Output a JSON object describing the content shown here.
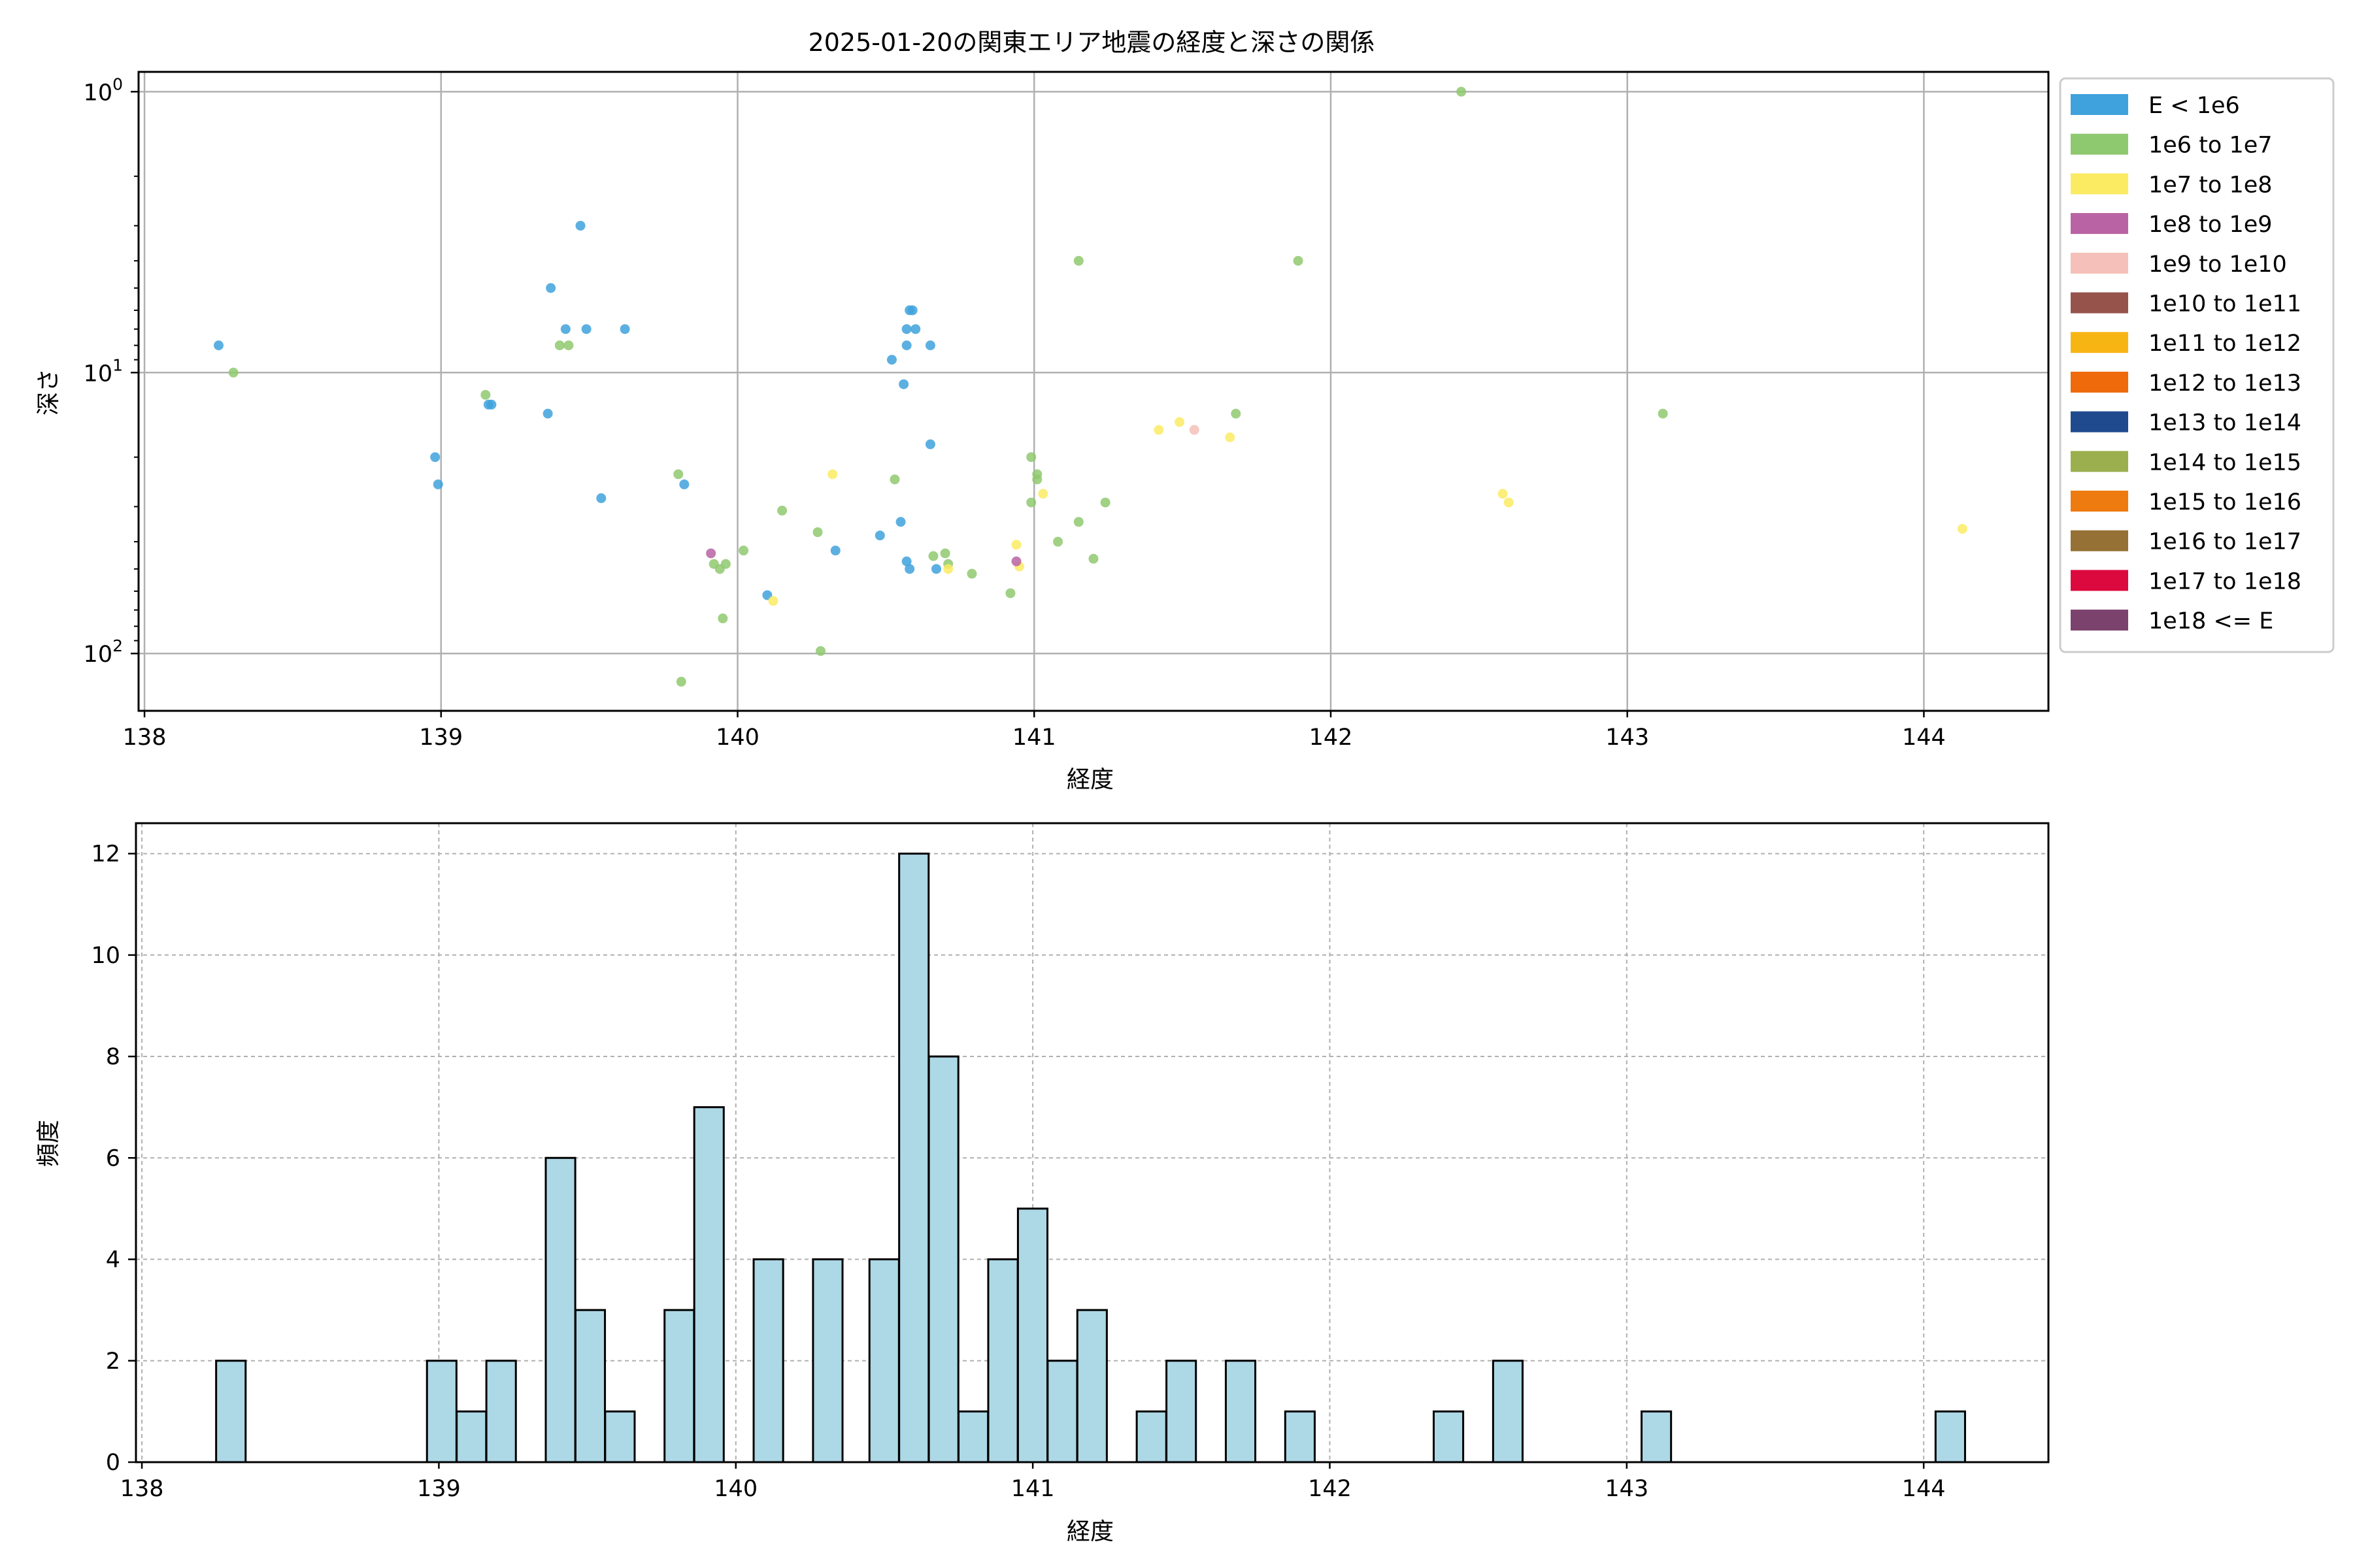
{
  "chart_data": [
    {
      "type": "scatter",
      "title": "2025-01-20の関東エリア地震の経度と深さの関係",
      "xlabel": "経度",
      "ylabel": "深さ",
      "xlim": [
        137.98,
        144.42
      ],
      "ylim": [
        160,
        0.85
      ],
      "yscale": "log",
      "yinverted": true,
      "grid": true,
      "xticks": [
        "138",
        "139",
        "140",
        "141",
        "142",
        "143",
        "144"
      ],
      "yticks": [
        {
          "value": 1,
          "base": "10",
          "exp": "0"
        },
        {
          "value": 10,
          "base": "10",
          "exp": "1"
        },
        {
          "value": 100,
          "base": "10",
          "exp": "2"
        }
      ],
      "legend": {
        "placement": "outside-right",
        "entries": [
          {
            "label": "E < 1e6",
            "color": "#3fa2dc"
          },
          {
            "label": "1e6 to 1e7",
            "color": "#8fc96f"
          },
          {
            "label": "1e7 to 1e8",
            "color": "#fbeb63"
          },
          {
            "label": "1e8 to 1e9",
            "color": "#b963a4"
          },
          {
            "label": "1e9 to 1e10",
            "color": "#f4c0b9"
          },
          {
            "label": "1e10 to 1e11",
            "color": "#96534c"
          },
          {
            "label": "1e11 to 1e12",
            "color": "#f7b514"
          },
          {
            "label": "1e12 to 1e13",
            "color": "#ee6a0a"
          },
          {
            "label": "1e13 to 1e14",
            "color": "#1f4a8e"
          },
          {
            "label": "1e14 to 1e15",
            "color": "#9caf4f"
          },
          {
            "label": "1e15 to 1e16",
            "color": "#ee7b10"
          },
          {
            "label": "1e16 to 1e17",
            "color": "#957135"
          },
          {
            "label": "1e17 to 1e18",
            "color": "#dc093f"
          },
          {
            "label": "1e18 <= E",
            "color": "#7a426c"
          }
        ]
      },
      "series": [
        {
          "category": 0,
          "points": [
            [
              138.25,
              8
            ],
            [
              138.98,
              20
            ],
            [
              138.99,
              25
            ],
            [
              139.16,
              13
            ],
            [
              139.17,
              13
            ],
            [
              139.36,
              14
            ],
            [
              139.37,
              5
            ],
            [
              139.42,
              7
            ],
            [
              139.47,
              3
            ],
            [
              139.49,
              7
            ],
            [
              139.54,
              28
            ],
            [
              139.62,
              7
            ],
            [
              139.82,
              25
            ],
            [
              140.1,
              62
            ],
            [
              140.33,
              43
            ],
            [
              140.48,
              38
            ],
            [
              140.52,
              9
            ],
            [
              140.55,
              34
            ],
            [
              140.56,
              11
            ],
            [
              140.57,
              8
            ],
            [
              140.57,
              7
            ],
            [
              140.58,
              6
            ],
            [
              140.59,
              6
            ],
            [
              140.6,
              7
            ],
            [
              140.57,
              47
            ],
            [
              140.58,
              50
            ],
            [
              140.65,
              18
            ],
            [
              140.65,
              8
            ],
            [
              140.67,
              50
            ]
          ]
        },
        {
          "category": 1,
          "points": [
            [
              138.3,
              10
            ],
            [
              139.15,
              12
            ],
            [
              139.4,
              8
            ],
            [
              139.43,
              8
            ],
            [
              139.8,
              23
            ],
            [
              139.92,
              48
            ],
            [
              139.94,
              50
            ],
            [
              139.96,
              48
            ],
            [
              139.95,
              75
            ],
            [
              140.02,
              43
            ],
            [
              140.15,
              31
            ],
            [
              140.27,
              37
            ],
            [
              140.28,
              98
            ],
            [
              139.81,
              126
            ],
            [
              140.53,
              24
            ],
            [
              140.66,
              45
            ],
            [
              140.7,
              44
            ],
            [
              140.71,
              48
            ],
            [
              140.79,
              52
            ],
            [
              140.92,
              61
            ],
            [
              140.99,
              20
            ],
            [
              141.01,
              23
            ],
            [
              141.01,
              24
            ],
            [
              140.99,
              29
            ],
            [
              141.08,
              40
            ],
            [
              141.15,
              34
            ],
            [
              141.2,
              46
            ],
            [
              141.24,
              29
            ],
            [
              141.15,
              4
            ],
            [
              141.68,
              14
            ],
            [
              141.89,
              4
            ],
            [
              142.44,
              1
            ],
            [
              143.12,
              14
            ]
          ]
        },
        {
          "category": 2,
          "points": [
            [
              140.12,
              65
            ],
            [
              140.32,
              23
            ],
            [
              140.71,
              50
            ],
            [
              140.94,
              41
            ],
            [
              140.95,
              49
            ],
            [
              141.03,
              27
            ],
            [
              141.42,
              16
            ],
            [
              141.49,
              15
            ],
            [
              141.66,
              17
            ],
            [
              142.58,
              27
            ],
            [
              142.6,
              29
            ],
            [
              144.13,
              36
            ]
          ]
        },
        {
          "category": 3,
          "points": [
            [
              139.91,
              44
            ],
            [
              140.94,
              47
            ]
          ]
        },
        {
          "category": 4,
          "points": [
            [
              141.54,
              16
            ]
          ]
        }
      ]
    },
    {
      "type": "bar",
      "subtype": "histogram",
      "xlabel": "経度",
      "ylabel": "頻度",
      "xlim": [
        137.98,
        144.42
      ],
      "ylim": [
        0,
        12.6
      ],
      "grid": true,
      "xticks": [
        "138",
        "139",
        "140",
        "141",
        "142",
        "143",
        "144"
      ],
      "yticks": [
        "0",
        "2",
        "4",
        "6",
        "8",
        "10",
        "12"
      ],
      "bar_color": "#add8e6",
      "edge_color": "#000000",
      "bin_width": 0.0993,
      "bins": [
        {
          "start": 138.25,
          "count": 2
        },
        {
          "start": 138.96,
          "count": 2
        },
        {
          "start": 139.06,
          "count": 1
        },
        {
          "start": 139.16,
          "count": 2
        },
        {
          "start": 139.36,
          "count": 6
        },
        {
          "start": 139.46,
          "count": 3
        },
        {
          "start": 139.56,
          "count": 1
        },
        {
          "start": 139.76,
          "count": 3
        },
        {
          "start": 139.86,
          "count": 7
        },
        {
          "start": 140.06,
          "count": 4
        },
        {
          "start": 140.26,
          "count": 4
        },
        {
          "start": 140.45,
          "count": 4
        },
        {
          "start": 140.55,
          "count": 12
        },
        {
          "start": 140.65,
          "count": 8
        },
        {
          "start": 140.75,
          "count": 1
        },
        {
          "start": 140.85,
          "count": 4
        },
        {
          "start": 140.95,
          "count": 5
        },
        {
          "start": 141.05,
          "count": 2
        },
        {
          "start": 141.15,
          "count": 3
        },
        {
          "start": 141.35,
          "count": 1
        },
        {
          "start": 141.45,
          "count": 2
        },
        {
          "start": 141.65,
          "count": 2
        },
        {
          "start": 141.85,
          "count": 1
        },
        {
          "start": 142.35,
          "count": 1
        },
        {
          "start": 142.55,
          "count": 2
        },
        {
          "start": 143.05,
          "count": 1
        },
        {
          "start": 144.04,
          "count": 1
        }
      ]
    }
  ]
}
